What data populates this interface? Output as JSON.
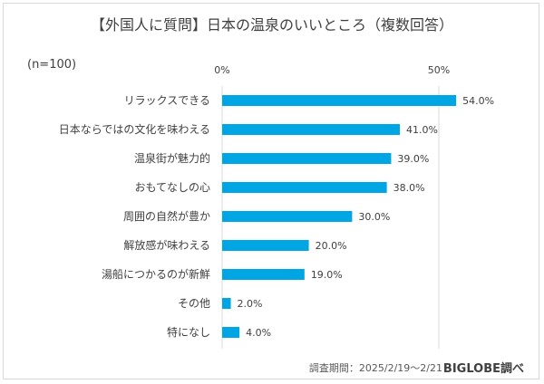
{
  "chart_data": {
    "type": "bar",
    "orientation": "horizontal",
    "title": "【外国人に質問】日本の温泉のいいところ（複数回答）",
    "sample_note": "(n=100)",
    "categories": [
      "リラックスできる",
      "日本ならではの文化を味わえる",
      "温泉街が魅力的",
      "おもてなしの心",
      "周囲の自然が豊か",
      "解放感が味わえる",
      "湯船につかるのが新鮮",
      "その他",
      "特になし"
    ],
    "values": [
      54.0,
      41.0,
      39.0,
      38.0,
      30.0,
      20.0,
      19.0,
      2.0,
      4.0
    ],
    "value_labels": [
      "54.0%",
      "41.0%",
      "39.0%",
      "38.0%",
      "30.0%",
      "20.0%",
      "19.0%",
      "2.0%",
      "4.0%"
    ],
    "x_ticks": [
      "0%",
      "50%"
    ],
    "xlim": [
      0,
      55
    ],
    "grid": true,
    "bar_color": "#00a6e3"
  },
  "footer": {
    "survey_period": "調査期間：2025/2/19～2/21",
    "source": "BIGLOBE調べ"
  }
}
